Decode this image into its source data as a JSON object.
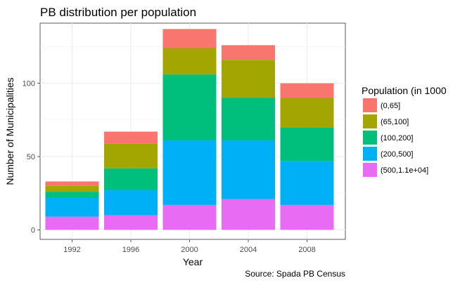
{
  "chart_data": {
    "type": "bar",
    "stacked": true,
    "title": "PB distribution per population",
    "xlabel": "Year",
    "ylabel": "Number of Municipalities",
    "caption": "Source: Spada PB Census",
    "categories": [
      "1992",
      "1996",
      "2000",
      "2004",
      "2008"
    ],
    "ylim": [
      -6.5,
      141
    ],
    "yticks": [
      0,
      50,
      100
    ],
    "grid": true,
    "legend": {
      "title": "Population (in 1000",
      "placement": "right"
    },
    "series": [
      {
        "name": "(500,1.1e+04]",
        "color": "#E76BF3",
        "values": [
          9,
          10,
          17,
          21,
          17
        ]
      },
      {
        "name": "(200,500]",
        "color": "#00B0F6",
        "values": [
          13,
          17,
          44,
          40,
          30
        ]
      },
      {
        "name": "(100,200]",
        "color": "#00BF7D",
        "values": [
          4,
          15,
          45,
          29,
          23
        ]
      },
      {
        "name": "(65,100]",
        "color": "#A3A500",
        "values": [
          4,
          17,
          18,
          26,
          20
        ]
      },
      {
        "name": "(0,65]",
        "color": "#F8766D",
        "values": [
          3,
          8,
          13,
          10,
          10
        ]
      }
    ]
  }
}
